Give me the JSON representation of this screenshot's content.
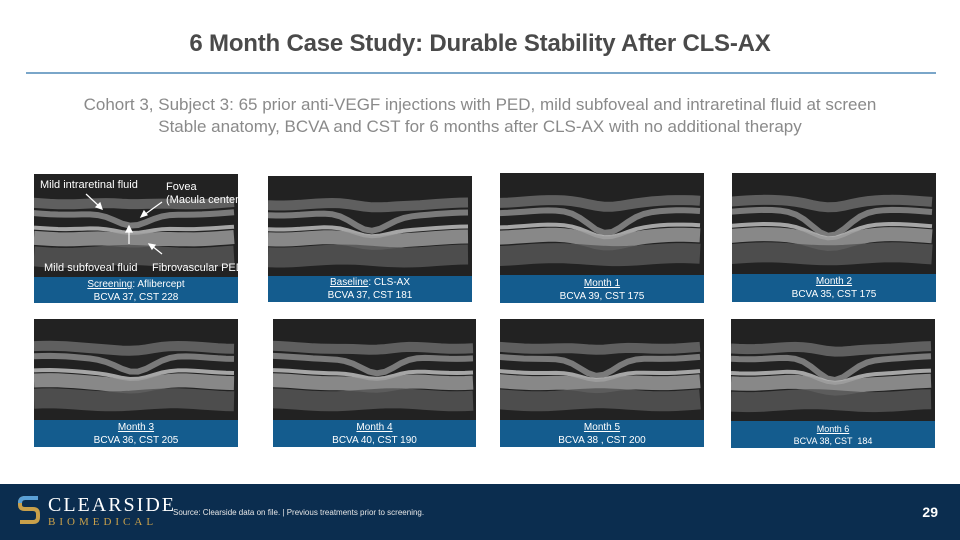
{
  "slide": {
    "title": "6 Month Case Study: Durable Stability After CLS-AX",
    "subtitle_line1": "Cohort 3, Subject 3: 65 prior anti-VEGF injections with PED, mild subfoveal and intraretinal fluid at screen",
    "subtitle_line2": "Stable anatomy, BCVA and CST for 6 months after CLS-AX with no additional therapy"
  },
  "annotations": {
    "intraretinal": "Mild intraretinal fluid",
    "fovea_line1": "Fovea",
    "fovea_line2": "(Macula center)",
    "subfoveal": "Mild subfoveal fluid",
    "ped": "Fibrovascular PED"
  },
  "panels": [
    {
      "name": "Screening",
      "suffix": ": Aflibercept",
      "stats": "BCVA 37, CST 228"
    },
    {
      "name": "Baseline",
      "suffix": ": CLS-AX",
      "stats": "BCVA 37, CST 181"
    },
    {
      "name": "Month 1",
      "suffix": "",
      "stats": "BCVA 39, CST 175"
    },
    {
      "name": "Month 2",
      "suffix": "",
      "stats": "BCVA 35, CST 175"
    },
    {
      "name": "Month 3",
      "suffix": "",
      "stats": "BCVA 36, CST 205"
    },
    {
      "name": "Month 4",
      "suffix": "",
      "stats": "BCVA 40, CST 190"
    },
    {
      "name": "Month 5",
      "suffix": "",
      "stats": "BCVA 38 , CST 200"
    },
    {
      "name": "Month 6",
      "suffix": "",
      "stats": "BCVA 38, CST  184"
    }
  ],
  "footer": {
    "logo_line1": "CLEARSIDE",
    "logo_line2": "BIOMEDICAL",
    "source": "Source: Clearside data on file. | Previous treatments prior to screening.",
    "page": "29"
  },
  "colors": {
    "label_bg": "#145c8e",
    "footer_bg": "#0b2d4f",
    "rule": "#7aa6c9"
  }
}
